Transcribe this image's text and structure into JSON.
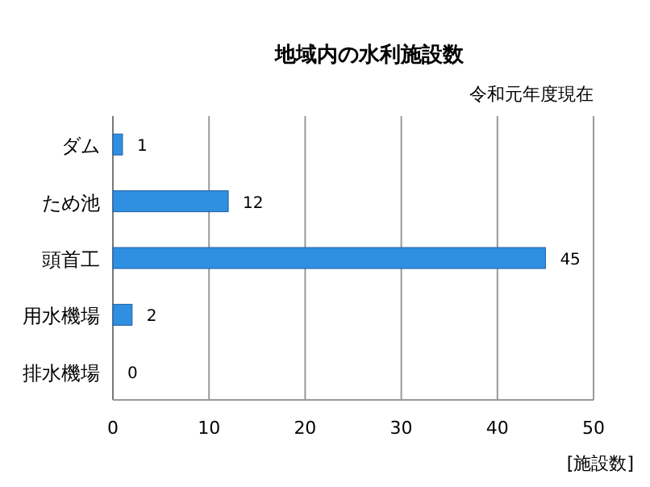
{
  "chart_data": {
    "type": "bar",
    "orientation": "horizontal",
    "title": "地域内の水利施設数",
    "subtitle": "令和元年度現在",
    "xlabel": "[施設数]",
    "categories": [
      "ダム",
      "ため池",
      "頭首工",
      "用水機場",
      "排水機場"
    ],
    "values": [
      1,
      12,
      45,
      2,
      0
    ],
    "color": "#2f8fe0",
    "xlim": [
      0,
      50
    ],
    "xticks": [
      0,
      10,
      20,
      30,
      40,
      50
    ],
    "grid": "x",
    "data_labels": true
  }
}
